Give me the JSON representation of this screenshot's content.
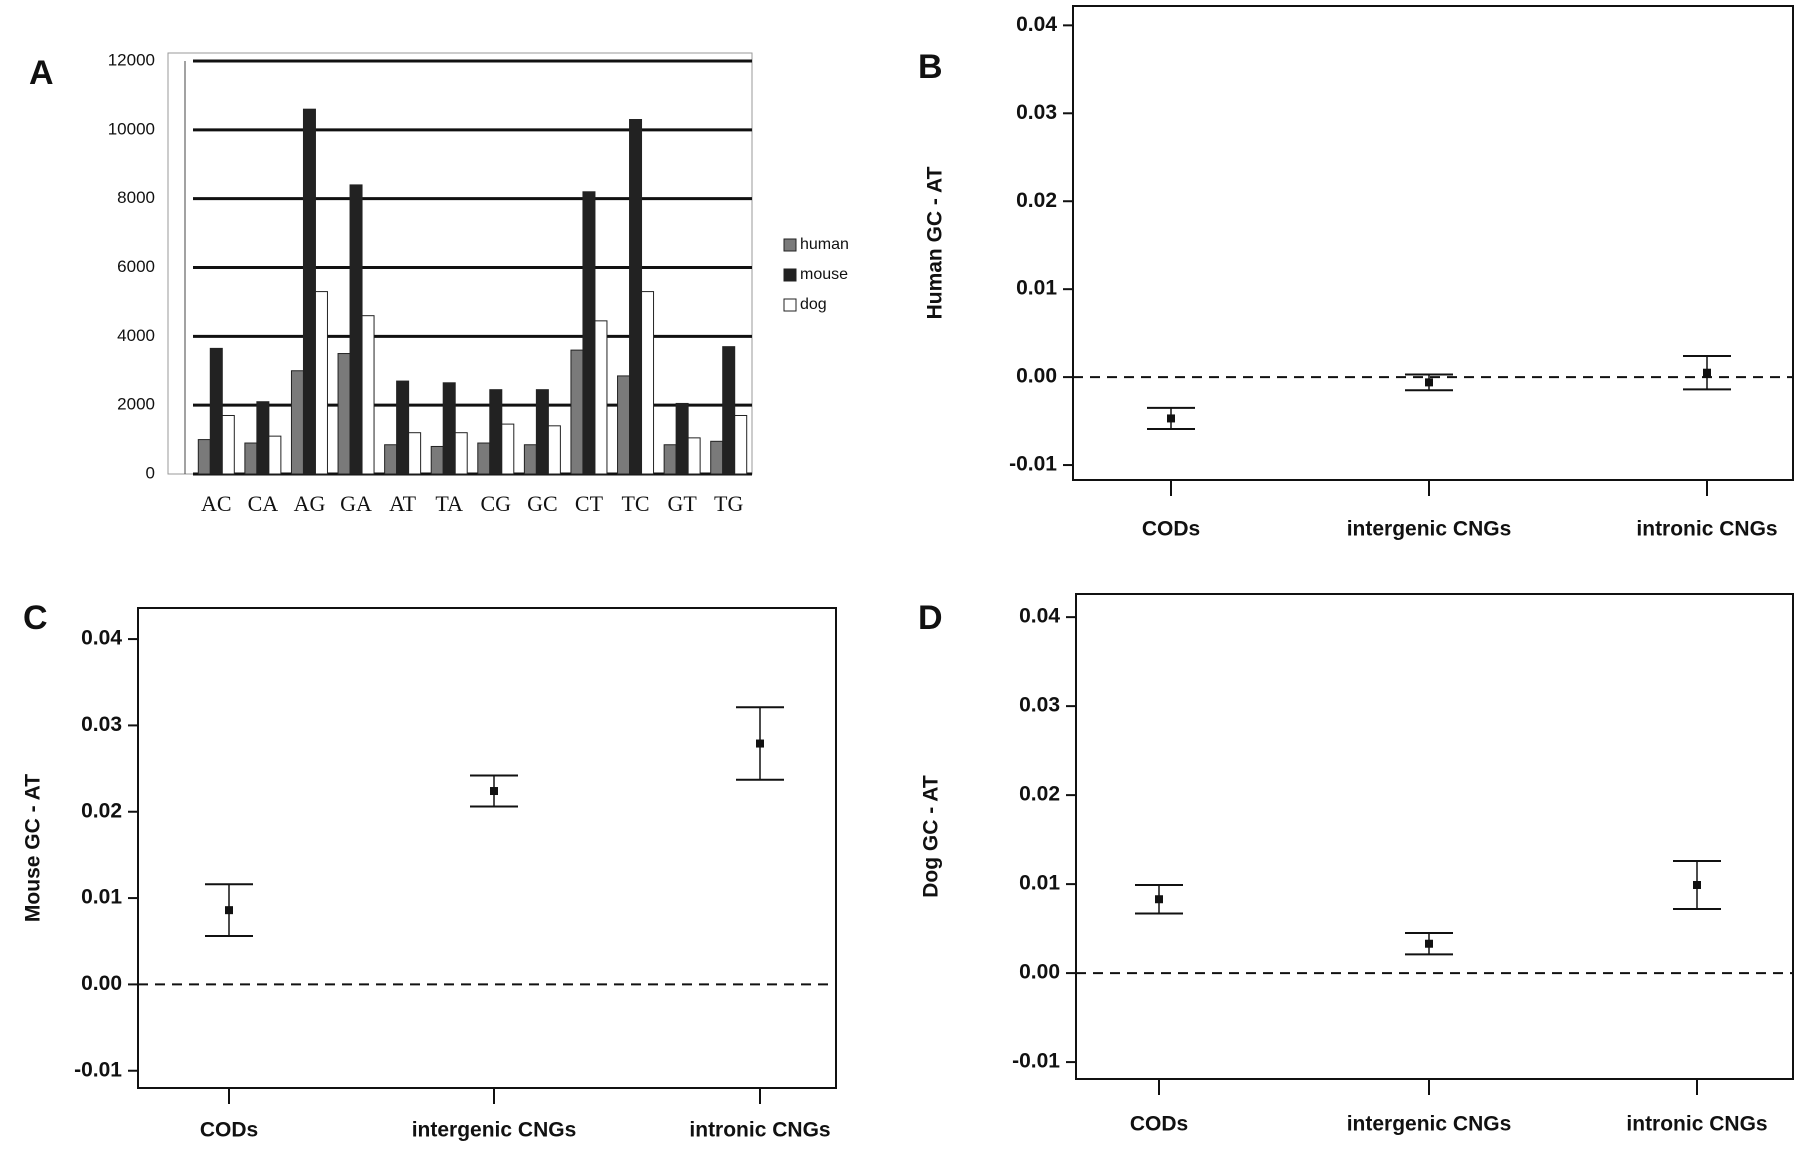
{
  "chart_data": [
    {
      "type": "bar",
      "panel": "A",
      "categories": [
        "AC",
        "CA",
        "AG",
        "GA",
        "AT",
        "TA",
        "CG",
        "GC",
        "CT",
        "TC",
        "GT",
        "TG"
      ],
      "series": [
        {
          "name": "human",
          "color": "#7a7a7a",
          "values": [
            1000,
            900,
            3000,
            3500,
            850,
            800,
            900,
            850,
            3600,
            2850,
            850,
            950
          ]
        },
        {
          "name": "mouse",
          "color": "#222222",
          "values": [
            3650,
            2100,
            10600,
            8400,
            2700,
            2650,
            2450,
            2450,
            8200,
            10300,
            2050,
            3700
          ]
        },
        {
          "name": "dog",
          "color": "#ffffff",
          "values": [
            1700,
            1100,
            5300,
            4600,
            1200,
            1200,
            1450,
            1400,
            4450,
            5300,
            1050,
            1700
          ]
        }
      ],
      "ylim": [
        0,
        12000
      ],
      "yticks": [
        0,
        2000,
        4000,
        6000,
        8000,
        10000,
        12000
      ],
      "grid": true,
      "legend": "right"
    },
    {
      "type": "errorbar",
      "panel": "B",
      "ylabel": "Human GC - AT",
      "categories": [
        "CODs",
        "intergenic CNGs",
        "intronic CNGs"
      ],
      "values": [
        -0.0047,
        -0.0006,
        0.0005
      ],
      "errors": [
        0.0012,
        0.0009,
        0.0019
      ],
      "ylim": [
        -0.0117,
        0.0422
      ],
      "yticks": [
        -0.01,
        {
          "value": 0,
          "label": "0.00"
        },
        0.01,
        0.02,
        0.03,
        0.04
      ],
      "hline": 0
    },
    {
      "type": "errorbar",
      "panel": "C",
      "ylabel": "Mouse GC - AT",
      "categories": [
        "CODs",
        "intergenic CNGs",
        "intronic CNGs"
      ],
      "values": [
        0.0086,
        0.0224,
        0.0279
      ],
      "errors": [
        0.003,
        0.0018,
        0.0042
      ],
      "ylim": [
        -0.012,
        0.0436
      ],
      "yticks": [
        -0.01,
        {
          "value": 0,
          "label": "0.00"
        },
        0.01,
        0.02,
        0.03,
        0.04
      ],
      "hline": 0
    },
    {
      "type": "errorbar",
      "panel": "D",
      "ylabel": "Dog GC - AT",
      "categories": [
        "CODs",
        "intergenic CNGs",
        "intronic CNGs"
      ],
      "values": [
        0.0083,
        0.0033,
        0.0099
      ],
      "errors": [
        0.0016,
        0.0012,
        0.0027
      ],
      "ylim": [
        -0.0119,
        0.0426
      ],
      "yticks": [
        -0.01,
        {
          "value": 0,
          "label": "0.00"
        },
        0.01,
        0.02,
        0.03,
        0.04
      ],
      "hline": 0
    }
  ]
}
